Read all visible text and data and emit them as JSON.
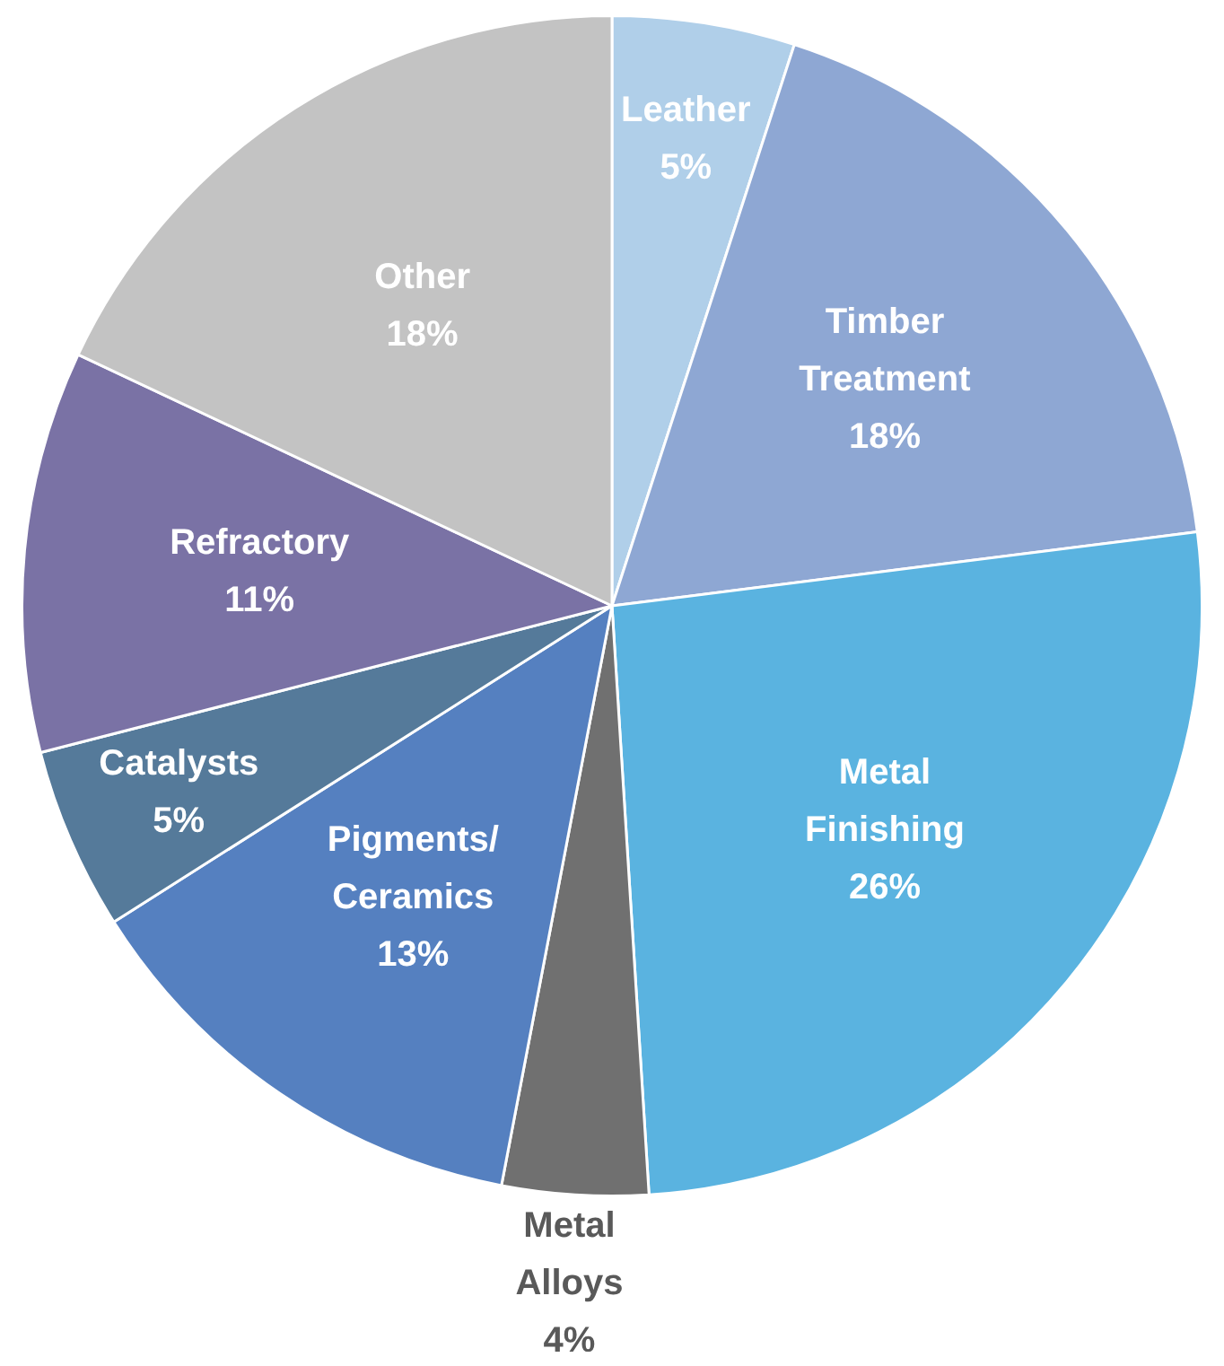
{
  "chart_data": {
    "type": "pie",
    "categories": [
      "Leather",
      "Timber Treatment",
      "Metal Finishing",
      "Metal Alloys",
      "Pigments/Ceramics",
      "Catalysts",
      "Refractory",
      "Other"
    ],
    "values": [
      5,
      18,
      26,
      4,
      13,
      5,
      11,
      18
    ],
    "colors": [
      "#b0cfe9",
      "#8ea7d3",
      "#5ab3e0",
      "#707070",
      "#5580c0",
      "#557a9a",
      "#7a72a5",
      "#c3c3c3"
    ],
    "value_labels": [
      "5%",
      "18%",
      "26%",
      "4%",
      "13%",
      "5%",
      "11%",
      "18%"
    ],
    "legend": false
  }
}
